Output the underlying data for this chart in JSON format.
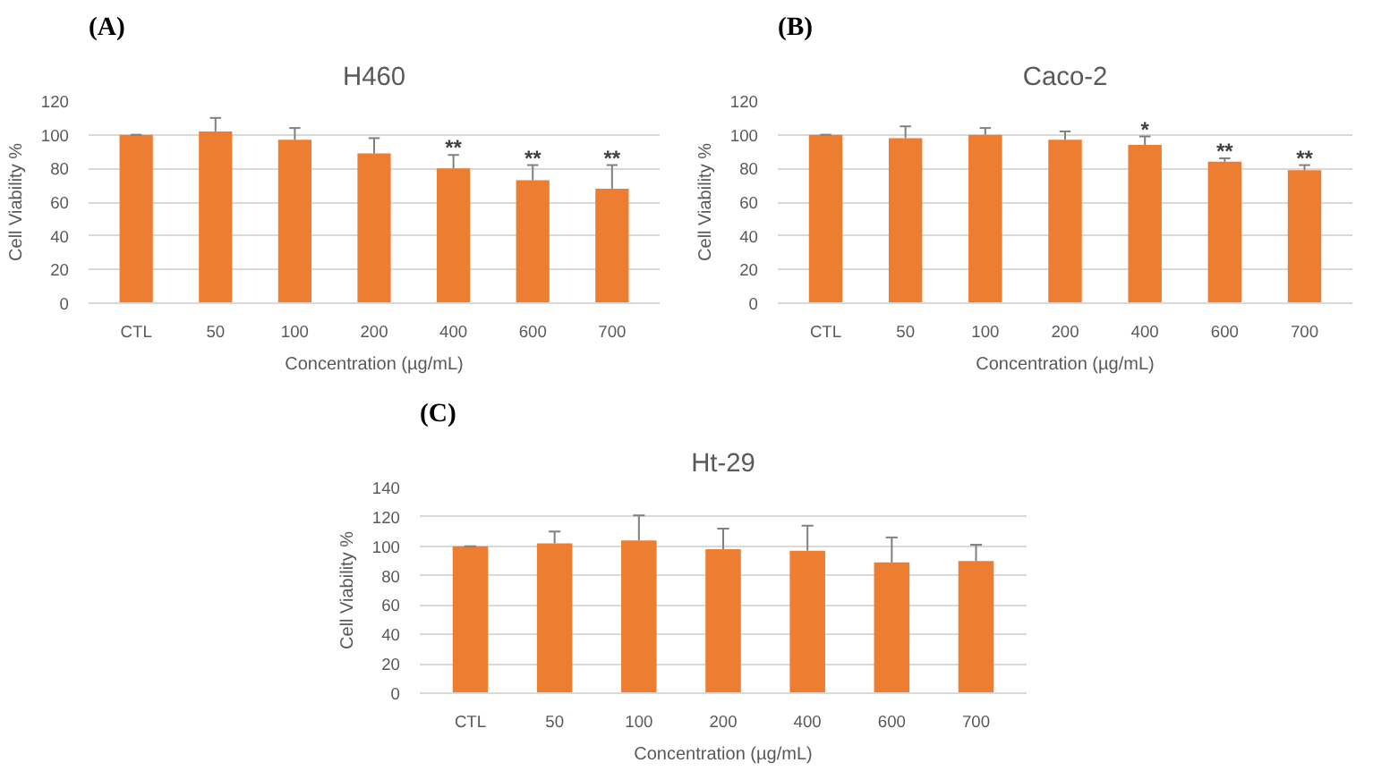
{
  "chart_data": [
    {
      "type": "bar",
      "title": "H460",
      "xlabel": "Concentration (µg/mL)",
      "ylabel": "Cell Viability %",
      "categories": [
        "CTL",
        "50",
        "100",
        "200",
        "400",
        "600",
        "700"
      ],
      "values": [
        100,
        102,
        97,
        89,
        80,
        73,
        68
      ],
      "color": "#ed7d31",
      "errors": [
        [
          100,
          100
        ],
        [
          102,
          110
        ],
        [
          97,
          104
        ],
        [
          89,
          98
        ],
        [
          80,
          88
        ],
        [
          73,
          82
        ],
        [
          68,
          82
        ]
      ],
      "ylim": [
        0,
        120
      ],
      "yticks": [
        0,
        20,
        40,
        60,
        80,
        100,
        120
      ],
      "grid": "y",
      "annotations": [
        "(A)",
        {
          "text": "**",
          "x": "400",
          "y": 88
        },
        {
          "text": "**",
          "x": "600",
          "y": 82
        },
        {
          "text": "**",
          "x": "700",
          "y": 82
        }
      ]
    },
    {
      "type": "bar",
      "title": "Caco-2",
      "xlabel": "Concentration (µg/mL)",
      "ylabel": "Cell Viability %",
      "categories": [
        "CTL",
        "50",
        "100",
        "200",
        "400",
        "600",
        "700"
      ],
      "values": [
        100,
        98,
        100,
        97,
        94,
        84,
        79
      ],
      "color": "#ed7d31",
      "errors": [
        [
          100,
          100
        ],
        [
          98,
          105
        ],
        [
          100,
          104
        ],
        [
          97,
          102
        ],
        [
          94,
          99
        ],
        [
          84,
          86
        ],
        [
          79,
          82
        ]
      ],
      "ylim": [
        0,
        120
      ],
      "yticks": [
        0,
        20,
        40,
        60,
        80,
        100,
        120
      ],
      "grid": "y",
      "annotations": [
        "(B)",
        {
          "text": "*",
          "x": "400",
          "y": 99
        },
        {
          "text": "**",
          "x": "600",
          "y": 86
        },
        {
          "text": "**",
          "x": "700",
          "y": 82
        }
      ]
    },
    {
      "type": "bar",
      "title": "Ht-29",
      "xlabel": "Concentration (µg/mL)",
      "ylabel": "Cell Viability %",
      "categories": [
        "CTL",
        "50",
        "100",
        "200",
        "400",
        "600",
        "700"
      ],
      "values": [
        100,
        102,
        104,
        98,
        97,
        89,
        90
      ],
      "color": "#ed7d31",
      "errors": [
        [
          100,
          100
        ],
        [
          102,
          110
        ],
        [
          104,
          121
        ],
        [
          98,
          112
        ],
        [
          97,
          114
        ],
        [
          89,
          106
        ],
        [
          90,
          101
        ]
      ],
      "ylim": [
        0,
        140
      ],
      "yticks": [
        0,
        20,
        40,
        60,
        80,
        100,
        120,
        140
      ],
      "grid": "y",
      "annotations": [
        "(C)"
      ]
    }
  ]
}
